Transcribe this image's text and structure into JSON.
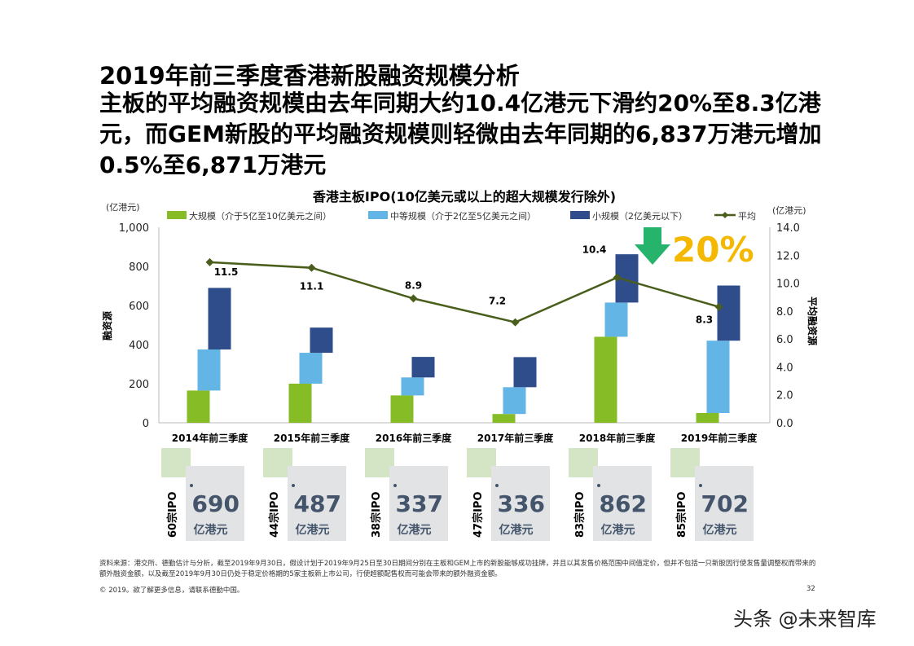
{
  "title": "2019年前三季度香港新股融资规模分析",
  "subtitle": "主板的平均融资规模由去年同期大约10.4亿港元下滑约20%至8.3亿港元，而GEM新股的平均融资规模则轻微由去年同期的6,837万港元增加0.5%至6,871万港元",
  "callout": "20%",
  "colors": {
    "large": "#86bc25",
    "medium": "#62b5e5",
    "small": "#2f4d8a",
    "avg": "#4a5e1c",
    "arrow": "#26b36b"
  },
  "chart_data": {
    "type": "bar",
    "title": "香港主板IPO(10亿美元或以上的超大规模发行除外)",
    "ylabel": "融资源",
    "y2label": "平均融资源",
    "yunit": "(亿港元)",
    "y2unit": "(亿港元)",
    "ylim": [
      0,
      1000
    ],
    "y2lim": [
      0,
      14
    ],
    "yticks": [
      "0",
      "200",
      "400",
      "600",
      "800",
      "1,000"
    ],
    "y2ticks": [
      "0.0",
      "2.0",
      "4.0",
      "6.0",
      "8.0",
      "10.0",
      "12.0",
      "14.0"
    ],
    "categories": [
      "2014年前三季度",
      "2015年前三季度",
      "2016年前三季度",
      "2017年前三季度",
      "2018年前三季度",
      "2019年前三季度"
    ],
    "series": [
      {
        "name": "大规模（介于5亿至10亿美元之间）",
        "values": [
          165,
          200,
          140,
          45,
          440,
          50
        ]
      },
      {
        "name": "中等规模（介于2亿至5亿美元之间）",
        "values": [
          210,
          158,
          92,
          137,
          175,
          370
        ]
      },
      {
        "name": "小规模（2亿美元以下）",
        "values": [
          315,
          129,
          105,
          154,
          247,
          282
        ]
      },
      {
        "name": "平均",
        "values": [
          11.5,
          11.1,
          8.9,
          7.2,
          10.4,
          8.3
        ],
        "labels": [
          "11.5",
          "11.1",
          "8.9",
          "7.2",
          "10.4",
          "8.3"
        ]
      }
    ]
  },
  "totals": [
    {
      "count": "60宗IPO",
      "value": "690",
      "unit": "亿港元"
    },
    {
      "count": "44宗IPO",
      "value": "487",
      "unit": "亿港元"
    },
    {
      "count": "38宗IPO",
      "value": "337",
      "unit": "亿港元"
    },
    {
      "count": "47宗IPO",
      "value": "336",
      "unit": "亿港元"
    },
    {
      "count": "83宗IPO",
      "value": "862",
      "unit": "亿港元"
    },
    {
      "count": "85宗IPO",
      "value": "702",
      "unit": "亿港元"
    }
  ],
  "source": "资料来源：港交所、德勤估计与分析，截至2019年9月30日，假设计划于2019年9月25日至30日期间分别在主板和GEM上市的新股能够成功挂牌，并且以其发售价格范围中间值定价，但并不包括一只新股因行使发售量调整权而带来的额外融资金额，以及截至2019年9月30日仍处于稳定价格期的5家主板新上市公司，行使超额配售权而可能会带来的额外融资金额。",
  "copyright": "© 2019。欲了解更多信息，请联系德勤中国。",
  "page": "32",
  "watermark": "头条 @未来智库"
}
